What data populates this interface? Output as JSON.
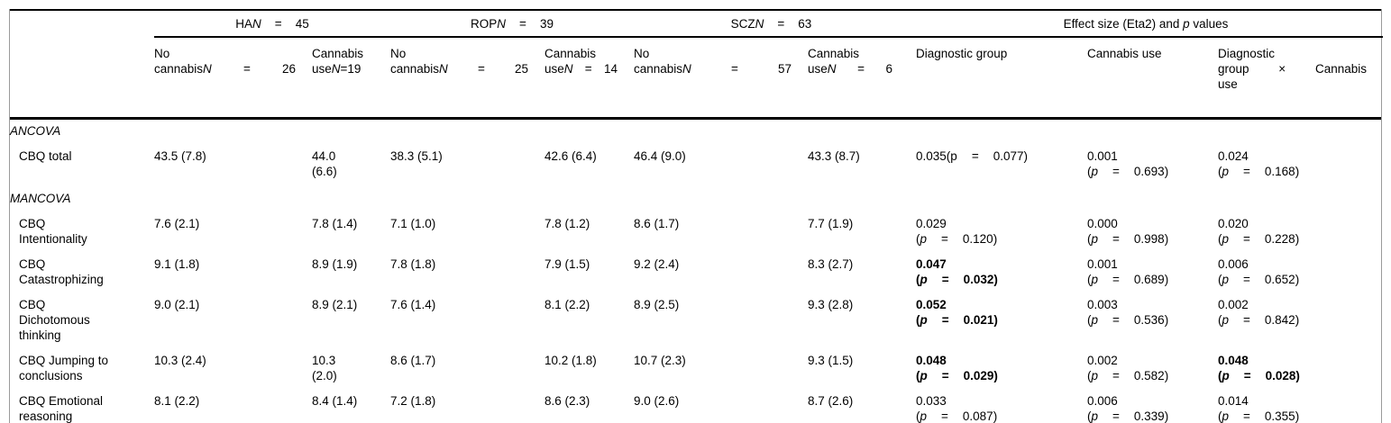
{
  "table": {
    "punct": {
      "open": "(",
      "close": ")",
      "eq": "=",
      "p_label": "p"
    },
    "header": {
      "groups": [
        {
          "name": "HA",
          "n_label": "N",
          "eq": "=",
          "n": "45"
        },
        {
          "name": "ROP",
          "n_label": "N",
          "eq": "=",
          "n": "39"
        },
        {
          "name": "SCZ",
          "n_label": "N",
          "eq": "=",
          "n": "63"
        }
      ],
      "effect_group": {
        "before": "Effect size (Eta2) and ",
        "p": "p",
        "after": " values"
      },
      "subcols": [
        {
          "line1": "No",
          "word": "cannabis",
          "n_label": "N",
          "eq": "=",
          "n": "26"
        },
        {
          "line1": "Cannabis",
          "word": "use",
          "n_label": "N",
          "eq": "=",
          "n": "19"
        },
        {
          "line1": "No",
          "word": "cannabis",
          "n_label": "N",
          "eq": "=",
          "n": "25"
        },
        {
          "line1": "Cannabis",
          "word": "use",
          "n_label": "N",
          "eq": "=",
          "n": "14"
        },
        {
          "line1": "No",
          "word": "cannabis",
          "n_label": "N",
          "eq": "=",
          "n": "57"
        },
        {
          "line1": "Cannabis",
          "word": "use",
          "n_label": "N",
          "eq": "=",
          "n": "6"
        },
        {
          "label": "Diagnostic group"
        },
        {
          "label": "Cannabis use"
        },
        {
          "line1": "Diagnostic",
          "w1": "group",
          "times": "×",
          "w2": "Cannabis",
          "line3": "use"
        }
      ]
    },
    "rows": [
      {
        "type": "section",
        "label": "ANCOVA"
      },
      {
        "type": "data",
        "label": "CBQ total",
        "values": [
          "43.5 (7.8)",
          "44.0 (6.6)",
          "38.3 (5.1)",
          "42.6 (6.4)",
          "46.4 (9.0)",
          "43.3 (8.7)"
        ],
        "effects": [
          {
            "eta": "0.035",
            "p": "0.077",
            "inline": true,
            "upright_p": true
          },
          {
            "eta": "0.001",
            "p": "0.693"
          },
          {
            "eta": "0.024",
            "p": "0.168"
          }
        ]
      },
      {
        "type": "section",
        "label": "MANCOVA"
      },
      {
        "type": "data",
        "label": "CBQ Intentionality",
        "values": [
          "7.6 (2.1)",
          "7.8 (1.4)",
          "7.1 (1.0)",
          "7.8 (1.2)",
          "8.6 (1.7)",
          "7.7 (1.9)"
        ],
        "effects": [
          {
            "eta": "0.029",
            "p": "0.120"
          },
          {
            "eta": "0.000",
            "p": "0.998"
          },
          {
            "eta": "0.020",
            "p": "0.228"
          }
        ]
      },
      {
        "type": "data",
        "label": "CBQ Catastrophizing",
        "values": [
          "9.1 (1.8)",
          "8.9 (1.9)",
          "7.8 (1.8)",
          "7.9 (1.5)",
          "9.2 (2.4)",
          "8.3 (2.7)"
        ],
        "effects": [
          {
            "eta": "0.047",
            "p": "0.032",
            "bold": true
          },
          {
            "eta": "0.001",
            "p": "0.689"
          },
          {
            "eta": "0.006",
            "p": "0.652"
          }
        ]
      },
      {
        "type": "data",
        "label": "CBQ Dichotomous thinking",
        "values": [
          "9.0 (2.1)",
          "8.9 (2.1)",
          "7.6 (1.4)",
          "8.1 (2.2)",
          "8.9 (2.5)",
          "9.3 (2.8)"
        ],
        "effects": [
          {
            "eta": "0.052",
            "p": "0.021",
            "bold": true
          },
          {
            "eta": "0.003",
            "p": "0.536"
          },
          {
            "eta": "0.002",
            "p": "0.842"
          }
        ]
      },
      {
        "type": "data",
        "label": "CBQ Jumping to conclusions",
        "values": [
          "10.3 (2.4)",
          "10.3 (2.0)",
          "8.6 (1.7)",
          "10.2 (1.8)",
          "10.7 (2.3)",
          "9.3 (1.5)"
        ],
        "effects": [
          {
            "eta": "0.048",
            "p": "0.029",
            "bold": true
          },
          {
            "eta": "0.002",
            "p": "0.582"
          },
          {
            "eta": "0.048",
            "p": "0.028",
            "bold": true
          }
        ]
      },
      {
        "type": "data",
        "label": "CBQ Emotional reasoning",
        "values": [
          "8.1 (2.2)",
          "8.4 (1.4)",
          "7.2 (1.8)",
          "8.6 (2.3)",
          "9.0 (2.6)",
          "8.7 (2.6)"
        ],
        "effects": [
          {
            "eta": "0.033",
            "p": "0.087"
          },
          {
            "eta": "0.006",
            "p": "0.339"
          },
          {
            "eta": "0.014",
            "p": "0.355"
          }
        ]
      }
    ]
  }
}
